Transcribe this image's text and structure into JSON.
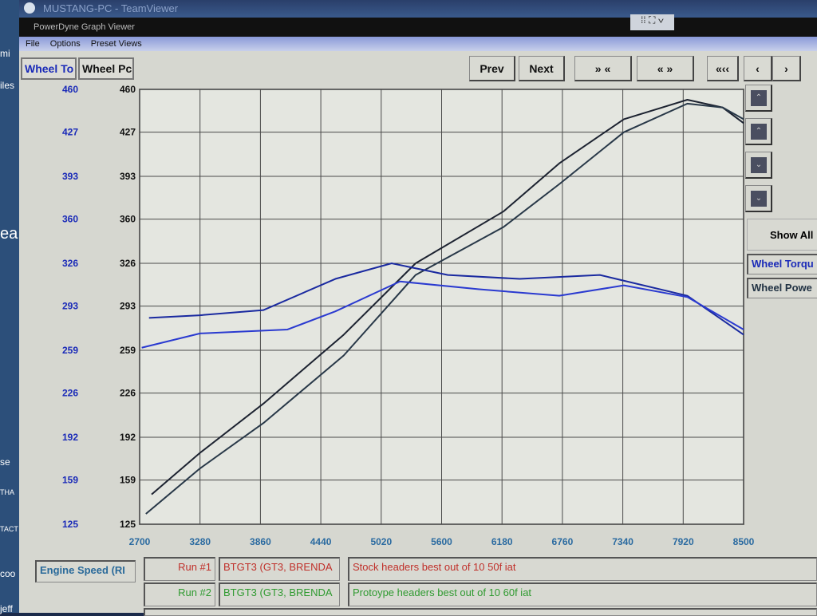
{
  "window": {
    "teamviewer_title": "MUSTANG-PC - TeamViewer",
    "app_title": "PowerDyne Graph Viewer"
  },
  "left_strip": [
    "mi",
    "iles",
    "ea",
    "se",
    "THA",
    "TACT",
    "coo",
    "jeff"
  ],
  "menu": [
    "File",
    "Options",
    "Preset Views"
  ],
  "tabs": [
    "Wheel To",
    "Wheel Pc"
  ],
  "toolbar": [
    "Prev",
    "Next",
    "» «",
    "« »",
    "«‹‹",
    "‹",
    "›"
  ],
  "side": {
    "show_all": "Show All",
    "legend": [
      "Wheel Torqu",
      "Wheel Powe"
    ]
  },
  "xaxis_label": "Engine Speed (RI",
  "runs": [
    {
      "run": "Run #1",
      "vehicle": "BTGT3 (GT3, BRENDA",
      "note": "Stock headers best out of 10 50f iat",
      "color": "#c0302a"
    },
    {
      "run": "Run #2",
      "vehicle": "BTGT3 (GT3, BRENDA",
      "note": "Protoype headers best out of 10 60f iat",
      "color": "#2f9a30"
    }
  ],
  "chart_data": {
    "type": "line",
    "xlim": [
      2700,
      8500
    ],
    "ylim": [
      125,
      460
    ],
    "xticks": [
      2700,
      3280,
      3860,
      4440,
      5020,
      5600,
      6180,
      6760,
      7340,
      7920,
      8500
    ],
    "yticks_left": [
      460,
      427,
      393,
      360,
      326,
      293,
      259,
      226,
      192,
      159,
      125
    ],
    "yticks_right": [
      460,
      427,
      393,
      360,
      326,
      293,
      259,
      226,
      192,
      159,
      125
    ],
    "grid": true,
    "series": [
      {
        "kind": "power",
        "color": "#1c2230",
        "points": [
          [
            2815,
            148
          ],
          [
            3280,
            180
          ],
          [
            3890,
            218
          ],
          [
            4660,
            271
          ],
          [
            5350,
            326
          ],
          [
            6195,
            366
          ],
          [
            6730,
            403
          ],
          [
            7350,
            437
          ],
          [
            7960,
            452
          ],
          [
            8300,
            446
          ],
          [
            8500,
            434
          ]
        ]
      },
      {
        "kind": "power",
        "color": "#283848",
        "points": [
          [
            2760,
            133
          ],
          [
            3280,
            168
          ],
          [
            3890,
            203
          ],
          [
            4660,
            255
          ],
          [
            5350,
            317
          ],
          [
            6195,
            354
          ],
          [
            6730,
            387
          ],
          [
            7350,
            427
          ],
          [
            7960,
            449
          ],
          [
            8300,
            446
          ],
          [
            8500,
            437
          ]
        ]
      },
      {
        "kind": "torque",
        "color": "#1a2aa0",
        "points": [
          [
            2790,
            284
          ],
          [
            3280,
            286
          ],
          [
            3890,
            290
          ],
          [
            4580,
            314
          ],
          [
            5120,
            326
          ],
          [
            5660,
            317
          ],
          [
            6350,
            314
          ],
          [
            7120,
            317
          ],
          [
            7960,
            301
          ],
          [
            8500,
            271
          ]
        ]
      },
      {
        "kind": "torque",
        "color": "#2a3ad0",
        "points": [
          [
            2720,
            261
          ],
          [
            3280,
            272
          ],
          [
            4120,
            275
          ],
          [
            4580,
            289
          ],
          [
            5200,
            312
          ],
          [
            5960,
            306
          ],
          [
            6730,
            301
          ],
          [
            7350,
            309
          ],
          [
            7960,
            300
          ],
          [
            8500,
            275
          ]
        ]
      }
    ]
  }
}
